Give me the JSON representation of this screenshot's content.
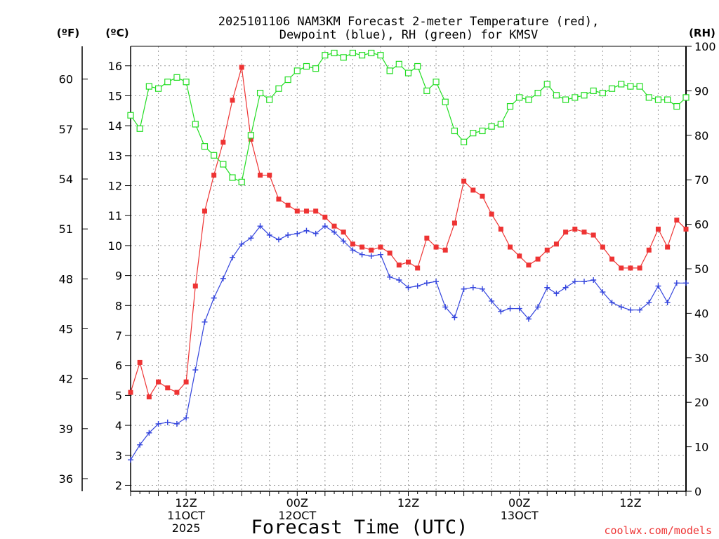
{
  "chart_data": {
    "type": "line",
    "title_line1": "2025101106 NAM3KM Forecast 2-meter Temperature (red),",
    "title_line2": "Dewpoint (blue), RH (green) for KMSV",
    "xlabel": "Forecast Time (UTC)",
    "credit": "coolwx.com/models",
    "unit_labels": {
      "fahrenheit": "(ºF)",
      "celsius": "(ºC)",
      "rh": "(RH)"
    },
    "x_hours_range": [
      0,
      60
    ],
    "y_celsius_range": [
      1.8,
      16.65
    ],
    "y_rh_range": [
      0,
      100
    ],
    "celsius_ticks": [
      2,
      3,
      4,
      5,
      6,
      7,
      8,
      9,
      10,
      11,
      12,
      13,
      14,
      15,
      16
    ],
    "fahrenheit_ticks": [
      36,
      39,
      42,
      45,
      48,
      51,
      54,
      57,
      60
    ],
    "rh_ticks": [
      0,
      10,
      20,
      30,
      40,
      50,
      60,
      70,
      80,
      90,
      100
    ],
    "x_ticks": [
      {
        "hour": 6,
        "lines": [
          "12Z",
          "11OCT",
          "2025"
        ]
      },
      {
        "hour": 18,
        "lines": [
          "00Z",
          "12OCT"
        ]
      },
      {
        "hour": 30,
        "lines": [
          "12Z"
        ]
      },
      {
        "hour": 42,
        "lines": [
          "00Z",
          "13OCT"
        ]
      },
      {
        "hour": 54,
        "lines": [
          "12Z"
        ]
      }
    ],
    "series": [
      {
        "name": "2-meter Temperature",
        "axis": "celsius",
        "color": "#ee3333",
        "marker": "filled-square",
        "values": [
          5.1,
          6.1,
          4.95,
          5.45,
          5.25,
          5.1,
          5.45,
          8.65,
          11.15,
          12.35,
          13.45,
          14.85,
          15.95,
          13.55,
          12.35,
          12.35,
          11.55,
          11.35,
          11.15,
          11.15,
          11.15,
          10.95,
          10.65,
          10.45,
          10.05,
          9.95,
          9.85,
          9.95,
          9.75,
          9.35,
          9.45,
          9.25,
          10.25,
          9.95,
          9.85,
          10.75,
          12.15,
          11.85,
          11.65,
          11.05,
          10.55,
          9.95,
          9.65,
          9.35,
          9.55,
          9.85,
          10.05,
          10.45,
          10.55,
          10.45,
          10.35,
          9.95,
          9.55,
          9.25,
          9.25,
          9.25,
          9.85,
          10.55,
          9.95,
          10.85,
          10.55
        ]
      },
      {
        "name": "Dewpoint",
        "axis": "celsius",
        "color": "#3344dd",
        "marker": "plus",
        "values": [
          2.85,
          3.35,
          3.75,
          4.05,
          4.1,
          4.05,
          4.25,
          5.85,
          7.45,
          8.25,
          8.9,
          9.6,
          10.05,
          10.25,
          10.65,
          10.35,
          10.2,
          10.35,
          10.4,
          10.5,
          10.4,
          10.65,
          10.45,
          10.15,
          9.85,
          9.7,
          9.65,
          9.7,
          8.95,
          8.85,
          8.6,
          8.65,
          8.75,
          8.8,
          7.95,
          7.6,
          8.55,
          8.6,
          8.55,
          8.15,
          7.8,
          7.9,
          7.9,
          7.55,
          7.95,
          8.6,
          8.4,
          8.6,
          8.8,
          8.8,
          8.85,
          8.45,
          8.1,
          7.95,
          7.85,
          7.85,
          8.1,
          8.65,
          8.1,
          8.75,
          8.75
        ]
      },
      {
        "name": "RH",
        "axis": "rh",
        "color": "#22dd22",
        "marker": "open-square",
        "values": [
          84.5,
          81.5,
          91,
          90.5,
          92,
          93,
          92,
          82.5,
          77.5,
          75.5,
          73.5,
          70.5,
          69.5,
          80,
          89.5,
          88,
          90.5,
          92.5,
          94.5,
          95.5,
          95,
          98,
          98.5,
          97.5,
          98.5,
          98,
          98.5,
          98,
          94.5,
          96,
          94,
          95.5,
          90,
          92,
          87.5,
          81,
          78.5,
          80.5,
          81,
          82,
          82.5,
          86.5,
          88.5,
          88,
          89.5,
          91.5,
          89,
          88,
          88.5,
          89,
          90,
          89.5,
          90.5,
          91.5,
          91,
          91,
          88.5,
          88,
          88,
          86.5,
          88.5
        ]
      }
    ]
  }
}
